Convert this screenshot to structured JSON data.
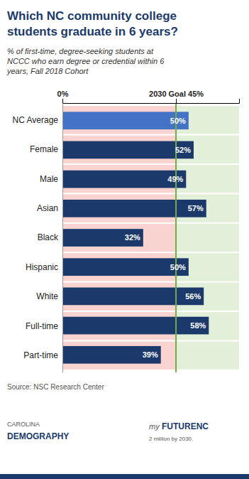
{
  "chart_data": {
    "type": "bar",
    "orientation": "horizontal",
    "title": "Which NC community college\nstudents graduate in 6 years?",
    "subtitle": "% of first-time, degree-seeking students at\nNCCC who earn degree or credential within 6\nyears, Fall 2018 Cohort",
    "categories": [
      "NC Average",
      "Female",
      "Male",
      "Asian",
      "Black",
      "Hispanic",
      "White",
      "Full-time",
      "Part-time"
    ],
    "values": [
      50,
      52,
      49,
      57,
      32,
      50,
      56,
      58,
      39
    ],
    "value_labels": [
      "50%",
      "52%",
      "49%",
      "57%",
      "32%",
      "50%",
      "56%",
      "58%",
      "39%"
    ],
    "data_labels": true,
    "colors": [
      "#4472c4",
      "#1b3a6b",
      "#1b3a6b",
      "#1b3a6b",
      "#1b3a6b",
      "#1b3a6b",
      "#1b3a6b",
      "#1b3a6b",
      "#1b3a6b"
    ],
    "xlim": [
      0,
      70
    ],
    "xticks": [
      {
        "value": 0,
        "label": "0%"
      },
      {
        "value": 45,
        "label": "2030 Goal 45%"
      }
    ],
    "goal": 45,
    "grid": false,
    "annotations": [
      "Source: NSC Research Center",
      "CAROLINA",
      "DEMOGRAPHY",
      "my",
      "FUTURENC",
      "2 million by 2030."
    ]
  }
}
